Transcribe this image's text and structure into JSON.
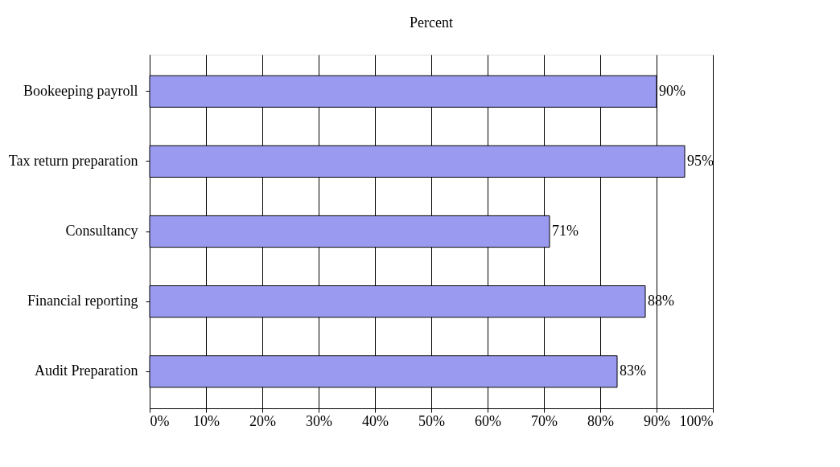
{
  "chart_data": {
    "type": "bar",
    "orientation": "horizontal",
    "title": "Percent",
    "categories": [
      "Bookeeping payroll",
      "Tax return preparation",
      "Consultancy",
      "Financial reporting",
      "Audit Preparation"
    ],
    "values": [
      90,
      95,
      71,
      88,
      83
    ],
    "value_labels": [
      "90%",
      "95%",
      "71%",
      "88%",
      "83%"
    ],
    "color": "#9a9af0",
    "xlim": [
      0,
      100
    ],
    "xticks": [
      {
        "value": 0,
        "label": "0%"
      },
      {
        "value": 10,
        "label": "10%"
      },
      {
        "value": 20,
        "label": "20%"
      },
      {
        "value": 30,
        "label": "30%"
      },
      {
        "value": 40,
        "label": "40%"
      },
      {
        "value": 50,
        "label": "50%"
      },
      {
        "value": 60,
        "label": "60%"
      },
      {
        "value": 70,
        "label": "70%"
      },
      {
        "value": 80,
        "label": "80%"
      },
      {
        "value": 90,
        "label": "90%"
      },
      {
        "value": 100,
        "label": "100%"
      }
    ],
    "grid": "x"
  }
}
